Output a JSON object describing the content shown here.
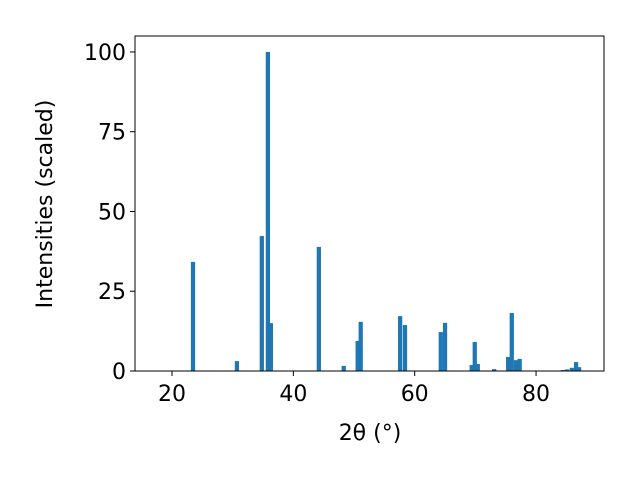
{
  "chart_data": {
    "type": "bar",
    "x_label": "2θ (°)",
    "y_label": "Intensities (scaled)",
    "x": [
      23.46,
      30.7,
      34.8,
      35.8,
      36.3,
      44.2,
      48.3,
      50.6,
      51.1,
      57.6,
      58.4,
      64.3,
      65.0,
      69.4,
      69.9,
      70.4,
      73.1,
      75.4,
      76.0,
      76.7,
      77.3,
      84.4,
      85.1,
      85.9,
      86.6,
      87.1
    ],
    "values": [
      34.2,
      3.1,
      42.3,
      100,
      15,
      38.9,
      1.6,
      9.4,
      15.4,
      17.2,
      14.4,
      12.2,
      15.1,
      1.9,
      9.1,
      2.2,
      0.6,
      4.4,
      18.2,
      3.4,
      3.8,
      0.3,
      0.5,
      1.0,
      2.8,
      1.2
    ],
    "color": "#1f77b4",
    "xlim": [
      13.9,
      91.2
    ],
    "xticks": [
      20,
      40,
      60,
      80
    ],
    "ylim": [
      0,
      105
    ],
    "yticks": [
      0,
      25,
      50,
      75,
      100
    ],
    "grid": false
  }
}
